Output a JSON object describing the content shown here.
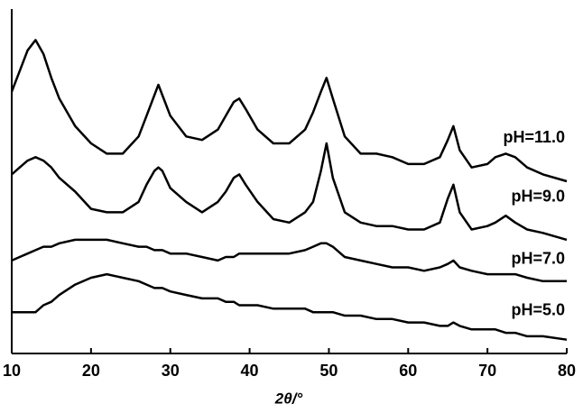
{
  "chart_data": {
    "type": "line",
    "xlabel": "2θ/°",
    "xlim": [
      10,
      80
    ],
    "xticks": [
      10,
      20,
      30,
      40,
      50,
      60,
      70,
      80
    ],
    "ylim": [
      0,
      100
    ],
    "x": [
      10,
      11,
      12,
      13,
      14,
      15,
      16,
      18,
      20,
      22,
      24,
      26,
      27,
      28,
      28.5,
      29,
      30,
      32,
      34,
      36,
      37,
      38,
      38.7,
      39.5,
      41,
      43,
      45,
      47,
      48,
      49,
      49.7,
      50.5,
      52,
      54,
      56,
      58,
      60,
      62,
      64,
      65,
      65.7,
      66.5,
      68,
      70,
      71,
      72.3,
      73.5,
      75,
      77,
      80
    ],
    "series": [
      {
        "name": "pH=11.0",
        "color": "#000000",
        "values": [
          76,
          82,
          88,
          91,
          87,
          80,
          74,
          66,
          61,
          58,
          58,
          63,
          69,
          75,
          78,
          75,
          69,
          63,
          62,
          65,
          69,
          73,
          74,
          71,
          65,
          61,
          61,
          65,
          70,
          76,
          80,
          74,
          63,
          58,
          58,
          57,
          55,
          55,
          57,
          62,
          66,
          59,
          54,
          55,
          57,
          58,
          57,
          54,
          52,
          50
        ]
      },
      {
        "name": "pH=9.0",
        "color": "#000000",
        "values": [
          52,
          54,
          56,
          57,
          56,
          54,
          51,
          47,
          42,
          41,
          41,
          44,
          49,
          53,
          54,
          53,
          48,
          44,
          41,
          44,
          47,
          51,
          52,
          49,
          44,
          39,
          38,
          41,
          44,
          53,
          61,
          51,
          41,
          38,
          37,
          37,
          36,
          36,
          38,
          45,
          49,
          41,
          36,
          37,
          38,
          40,
          38,
          36,
          35,
          33
        ]
      },
      {
        "name": "pH=7.0",
        "color": "#000000",
        "values": [
          27,
          28,
          29,
          30,
          31,
          31,
          32,
          33,
          33,
          33,
          32,
          31,
          31,
          30,
          30,
          30,
          29,
          29,
          28,
          27,
          28,
          28,
          29,
          29,
          29,
          29,
          29,
          30,
          31,
          32,
          32,
          31,
          28,
          27,
          26,
          25,
          25,
          24,
          25,
          26,
          27,
          25,
          24,
          23,
          23,
          23,
          23,
          22,
          21,
          21
        ]
      },
      {
        "name": "pH=5.0",
        "color": "#000000",
        "values": [
          12,
          12,
          12,
          12,
          14,
          15,
          17,
          20,
          22,
          23,
          22,
          21,
          20,
          19,
          19,
          19,
          18,
          17,
          16,
          16,
          15,
          15,
          14,
          14,
          14,
          13,
          13,
          13,
          12,
          12,
          12,
          12,
          11,
          11,
          10,
          10,
          9,
          9,
          8,
          8,
          9,
          8,
          7,
          7,
          7,
          6,
          6,
          5,
          5,
          4
        ]
      }
    ]
  }
}
